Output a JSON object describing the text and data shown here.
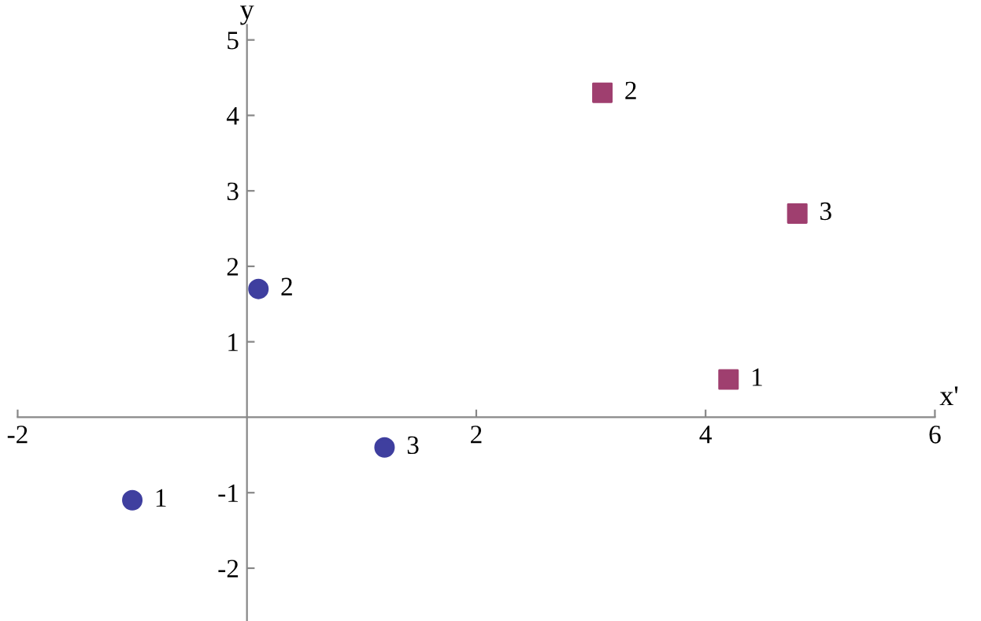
{
  "chart_data": {
    "type": "scatter",
    "xlabel": "x'",
    "ylabel": "y",
    "series": [
      {
        "color": "#3f3f9f",
        "marker": "circle",
        "x": [
          -1.0,
          0.1,
          1.2
        ],
        "values": [
          -1.1,
          1.7,
          -0.4
        ]
      },
      {
        "color": "#9f3f6f",
        "marker": "square",
        "x": [
          4.2,
          3.1,
          4.8
        ],
        "values": [
          0.5,
          4.3,
          2.7
        ]
      }
    ],
    "annotations": [
      {
        "text": "1",
        "x": -1.0,
        "y": -1.1
      },
      {
        "text": "2",
        "x": 0.1,
        "y": 1.7
      },
      {
        "text": "3",
        "x": 1.2,
        "y": -0.4
      },
      {
        "text": "1",
        "x": 4.2,
        "y": 0.5
      },
      {
        "text": "2",
        "x": 3.1,
        "y": 4.3
      },
      {
        "text": "3",
        "x": 4.8,
        "y": 2.7
      }
    ],
    "xlim": [
      -2,
      6
    ],
    "ylim": [
      -2.7,
      5.2
    ],
    "xticks": [
      -2,
      2,
      4,
      6
    ],
    "yticks": [
      -2,
      -1,
      1,
      2,
      3,
      4,
      5
    ],
    "grid": false,
    "legend": false
  }
}
